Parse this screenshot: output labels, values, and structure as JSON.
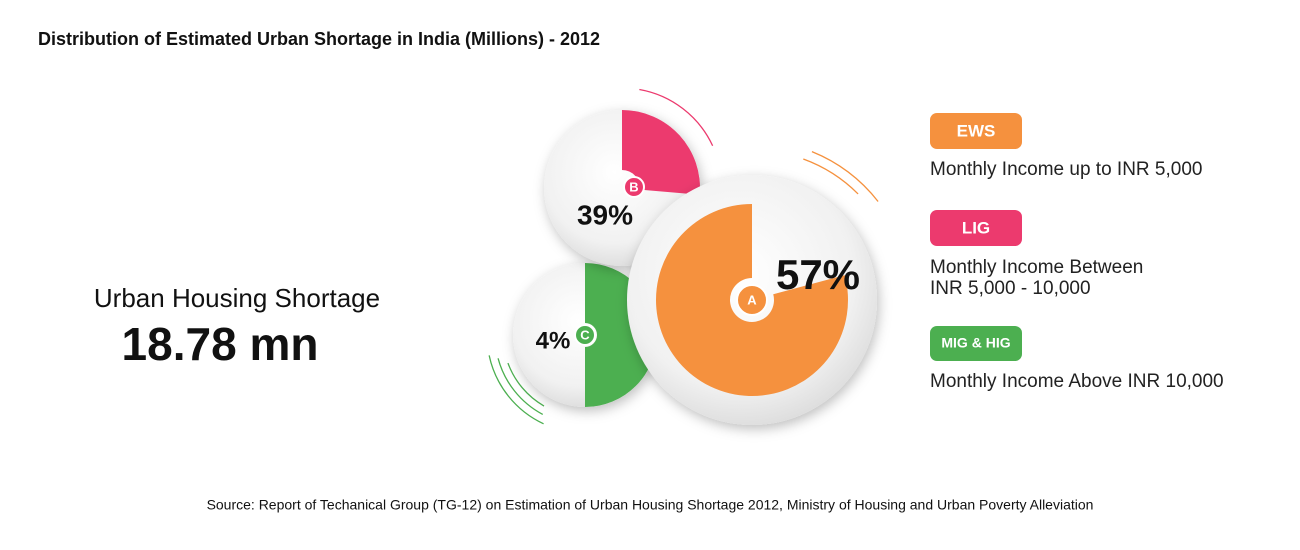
{
  "header": {
    "title": "Distribution of Estimated Urban Shortage in India (Millions) - 2012"
  },
  "summary": {
    "label": "Urban Housing Shortage",
    "value": "18.78 mn"
  },
  "segments": [
    {
      "badge": "A",
      "percent": "57%"
    },
    {
      "badge": "B",
      "percent": "39%"
    },
    {
      "badge": "C",
      "percent": "4%"
    }
  ],
  "legend": [
    {
      "tag": "EWS",
      "description": [
        "Monthly Income up to INR 5,000"
      ]
    },
    {
      "tag": "LIG",
      "description": [
        "Monthly Income Between",
        "INR 5,000 - 10,000"
      ]
    },
    {
      "tag": "MIG & HIG",
      "description": [
        "Monthly Income Above INR 10,000"
      ]
    }
  ],
  "source": "Source: Report of Techanical Group (TG-12) on Estimation of Urban Housing Shortage 2012, Ministry of Housing and Urban Poverty Alleviation"
}
